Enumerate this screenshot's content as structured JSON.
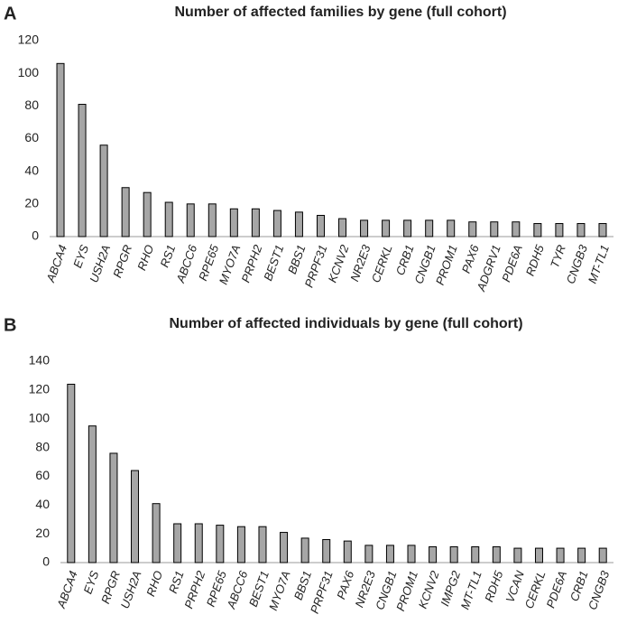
{
  "chart_data": [
    {
      "type": "bar",
      "panel": "A",
      "title": "Number of affected families by gene (full cohort)",
      "categories": [
        "ABCA4",
        "EYS",
        "USH2A",
        "RPGR",
        "RHO",
        "RS1",
        "ABCC6",
        "RPE65",
        "MYO7A",
        "PRPH2",
        "BEST1",
        "BBS1",
        "PRPF31",
        "KCNV2",
        "NR2E3",
        "CERKL",
        "CRB1",
        "CNGB1",
        "PROM1",
        "PAX6",
        "ADGRV1",
        "PDE6A",
        "RDH5",
        "TYR",
        "CNGB3",
        "MT-TL1"
      ],
      "values": [
        106,
        81,
        56,
        30,
        27,
        21,
        20,
        20,
        17,
        17,
        16,
        15,
        13,
        11,
        10,
        10,
        10,
        10,
        10,
        9,
        9,
        9,
        8,
        8,
        8,
        8
      ],
      "color": "#a6a6a6",
      "ylim": [
        0,
        120
      ],
      "yticks": [
        0,
        20,
        40,
        60,
        80,
        100,
        120
      ],
      "grid": false
    },
    {
      "type": "bar",
      "panel": "B",
      "title": "Number of affected individuals by gene (full cohort)",
      "categories": [
        "ABCA4",
        "EYS",
        "RPGR",
        "USH2A",
        "RHO",
        "RS1",
        "PRPH2",
        "RPE65",
        "ABCC6",
        "BEST1",
        "MYO7A",
        "BBS1",
        "PRPF31",
        "PAX6",
        "NR2E3",
        "CNGB1",
        "PROM1",
        "KCNV2",
        "IMPG2",
        "MT-TL1",
        "RDH5",
        "VCAN",
        "CERKL",
        "PDE6A",
        "CRB1",
        "CNGB3"
      ],
      "values": [
        124,
        95,
        76,
        64,
        41,
        27,
        27,
        26,
        25,
        25,
        21,
        17,
        16,
        15,
        12,
        12,
        12,
        11,
        11,
        11,
        11,
        10,
        10,
        10,
        10,
        10
      ],
      "color": "#a6a6a6",
      "ylim": [
        0,
        140
      ],
      "yticks": [
        0,
        20,
        40,
        60,
        80,
        100,
        120,
        140
      ],
      "grid": false
    }
  ]
}
